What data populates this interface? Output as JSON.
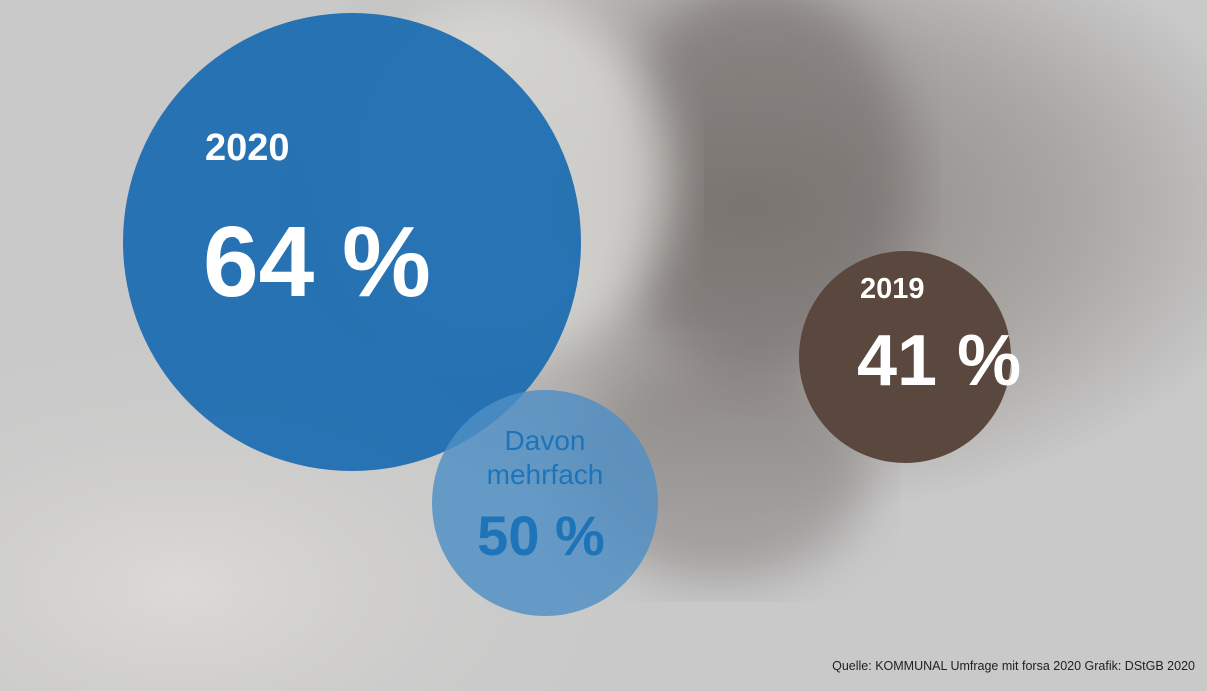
{
  "bubbles": [
    {
      "year": "2020",
      "value": "64 %"
    },
    {
      "label_lines": [
        "Davon",
        "mehrfach"
      ],
      "value": "50 %"
    },
    {
      "year": "2019",
      "value": "41 %"
    }
  ],
  "source": "Quelle: KOMMUNAL Umfrage mit forsa 2020 Grafik: DStGB 2020"
}
